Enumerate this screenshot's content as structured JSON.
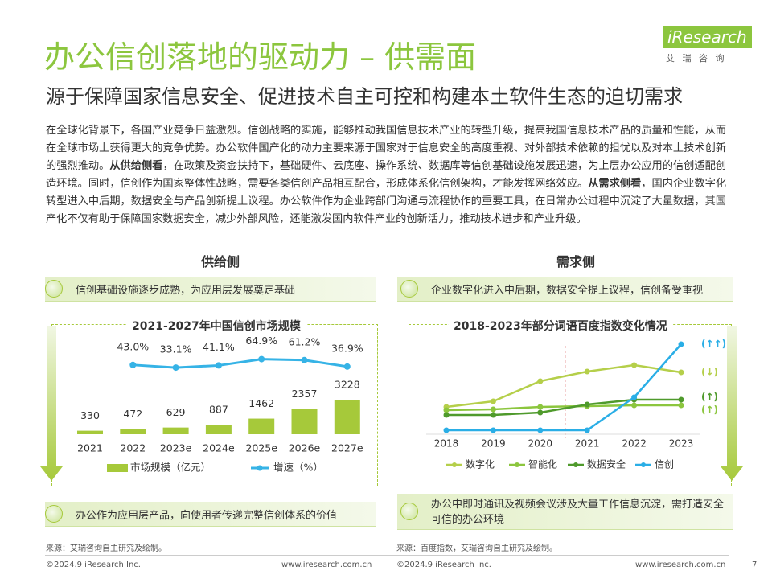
{
  "header": {
    "title": "办公信创落地的驱动力 – 供需面",
    "subtitle": "源于保障国家信息安全、促进技术自主可控和构建本土软件生态的迫切需求",
    "logo": "iResearch",
    "logo_sub": "艾 瑞 咨 询"
  },
  "body": {
    "segments": [
      {
        "text": "在全球化背景下，各国产业竞争日益激烈。信创战略的实施，能够推动我国信息技术产业的转型升级，提高我国信息技术产品的质量和性能，从而在全球市场上获得更大的竞争优势。办公软件国产化的动力主要来源于国家对于信息安全的高度重视、对外部技术依赖的担忧以及对本土技术创新的强烈推动。",
        "bold": false
      },
      {
        "text": "从供给侧看",
        "bold": true
      },
      {
        "text": "，在政策及资金扶持下，基础硬件、云底座、操作系统、数据库等信创基础设施发展迅速，为上层办公应用的信创适配创造环境。同时，信创作为国家整体性战略，需要各类信创产品相互配合，形成体系化信创架构，才能发挥网络效应。",
        "bold": false
      },
      {
        "text": "从需求侧看",
        "bold": true
      },
      {
        "text": "，国内企业数字化转型进入中后期，数据安全与产品创新提上议程。办公软件作为企业跨部门沟通与流程协作的重要工具，在日常办公过程中沉淀了大量数据，其国产化不仅有助于保障国家数据安全，减少外部风险，还能激发国内软件产业的创新活力，推动技术进步和产业升级。",
        "bold": false
      }
    ]
  },
  "supply": {
    "heading": "供给侧",
    "top": "信创基础设施逐步成熟，为应用层发展奠定基础",
    "bottom": "办公作为应用层产品，向使用者传递完整信创体系的价值",
    "source": "来源：艾瑞咨询自主研究及绘制。"
  },
  "demand": {
    "heading": "需求侧",
    "top": "企业数字化进入中后期，数据安全提上议程，信创备受重视",
    "bottom": "办公中即时通讯及视频会议涉及大量工作信息沉淀，需打造安全可信的办公环境",
    "source": "来源：百度指数，艾瑞咨询自主研究及绘制。"
  },
  "footer": {
    "copyright_left": "©2024.9 iResearch Inc.",
    "url_left": "www.iresearch.com.cn",
    "copyright_right": "©2024.9 iResearch Inc.",
    "url_right": "www.iresearch.com.cn",
    "page": "7"
  },
  "chart_data": [
    {
      "type": "bar",
      "title": "2021-2027年中国信创市场规模",
      "categories": [
        "2021",
        "2022",
        "2023e",
        "2024e",
        "2025e",
        "2026e",
        "2027e"
      ],
      "series": [
        {
          "name": "市场规模（亿元）",
          "color": "#a6c93a",
          "values": [
            330,
            472,
            629,
            887,
            1462,
            2357,
            3228
          ]
        },
        {
          "name": "增速（%）",
          "type": "line",
          "color": "#36b3e6",
          "values": [
            null,
            43.0,
            33.1,
            41.1,
            64.9,
            61.2,
            36.9
          ],
          "value_labels": [
            null,
            "43.0%",
            "33.1%",
            "41.1%",
            "64.9%",
            "61.2%",
            "36.9%"
          ]
        }
      ]
    },
    {
      "type": "line",
      "title": "2018-2023年部分词语百度指数变化情况",
      "categories": [
        "2018",
        "2019",
        "2020",
        "2021",
        "2022",
        "2023"
      ],
      "series": [
        {
          "name": "数字化",
          "color": "#b5cf4a",
          "values": [
            34,
            41,
            66,
            78,
            86,
            77
          ],
          "label": "(↓)"
        },
        {
          "name": "智能化",
          "color": "#8cc63e",
          "values": [
            30,
            31,
            34,
            35,
            36,
            36
          ],
          "label": "(↑)"
        },
        {
          "name": "数据安全",
          "color": "#4f9a2c",
          "values": [
            24,
            24,
            27,
            37,
            43,
            43
          ],
          "label": "(↑)"
        },
        {
          "name": "信创",
          "color": "#2aaee6",
          "values": [
            5,
            5,
            5,
            5,
            46,
            112
          ],
          "label": "(↑↑)"
        }
      ]
    }
  ]
}
